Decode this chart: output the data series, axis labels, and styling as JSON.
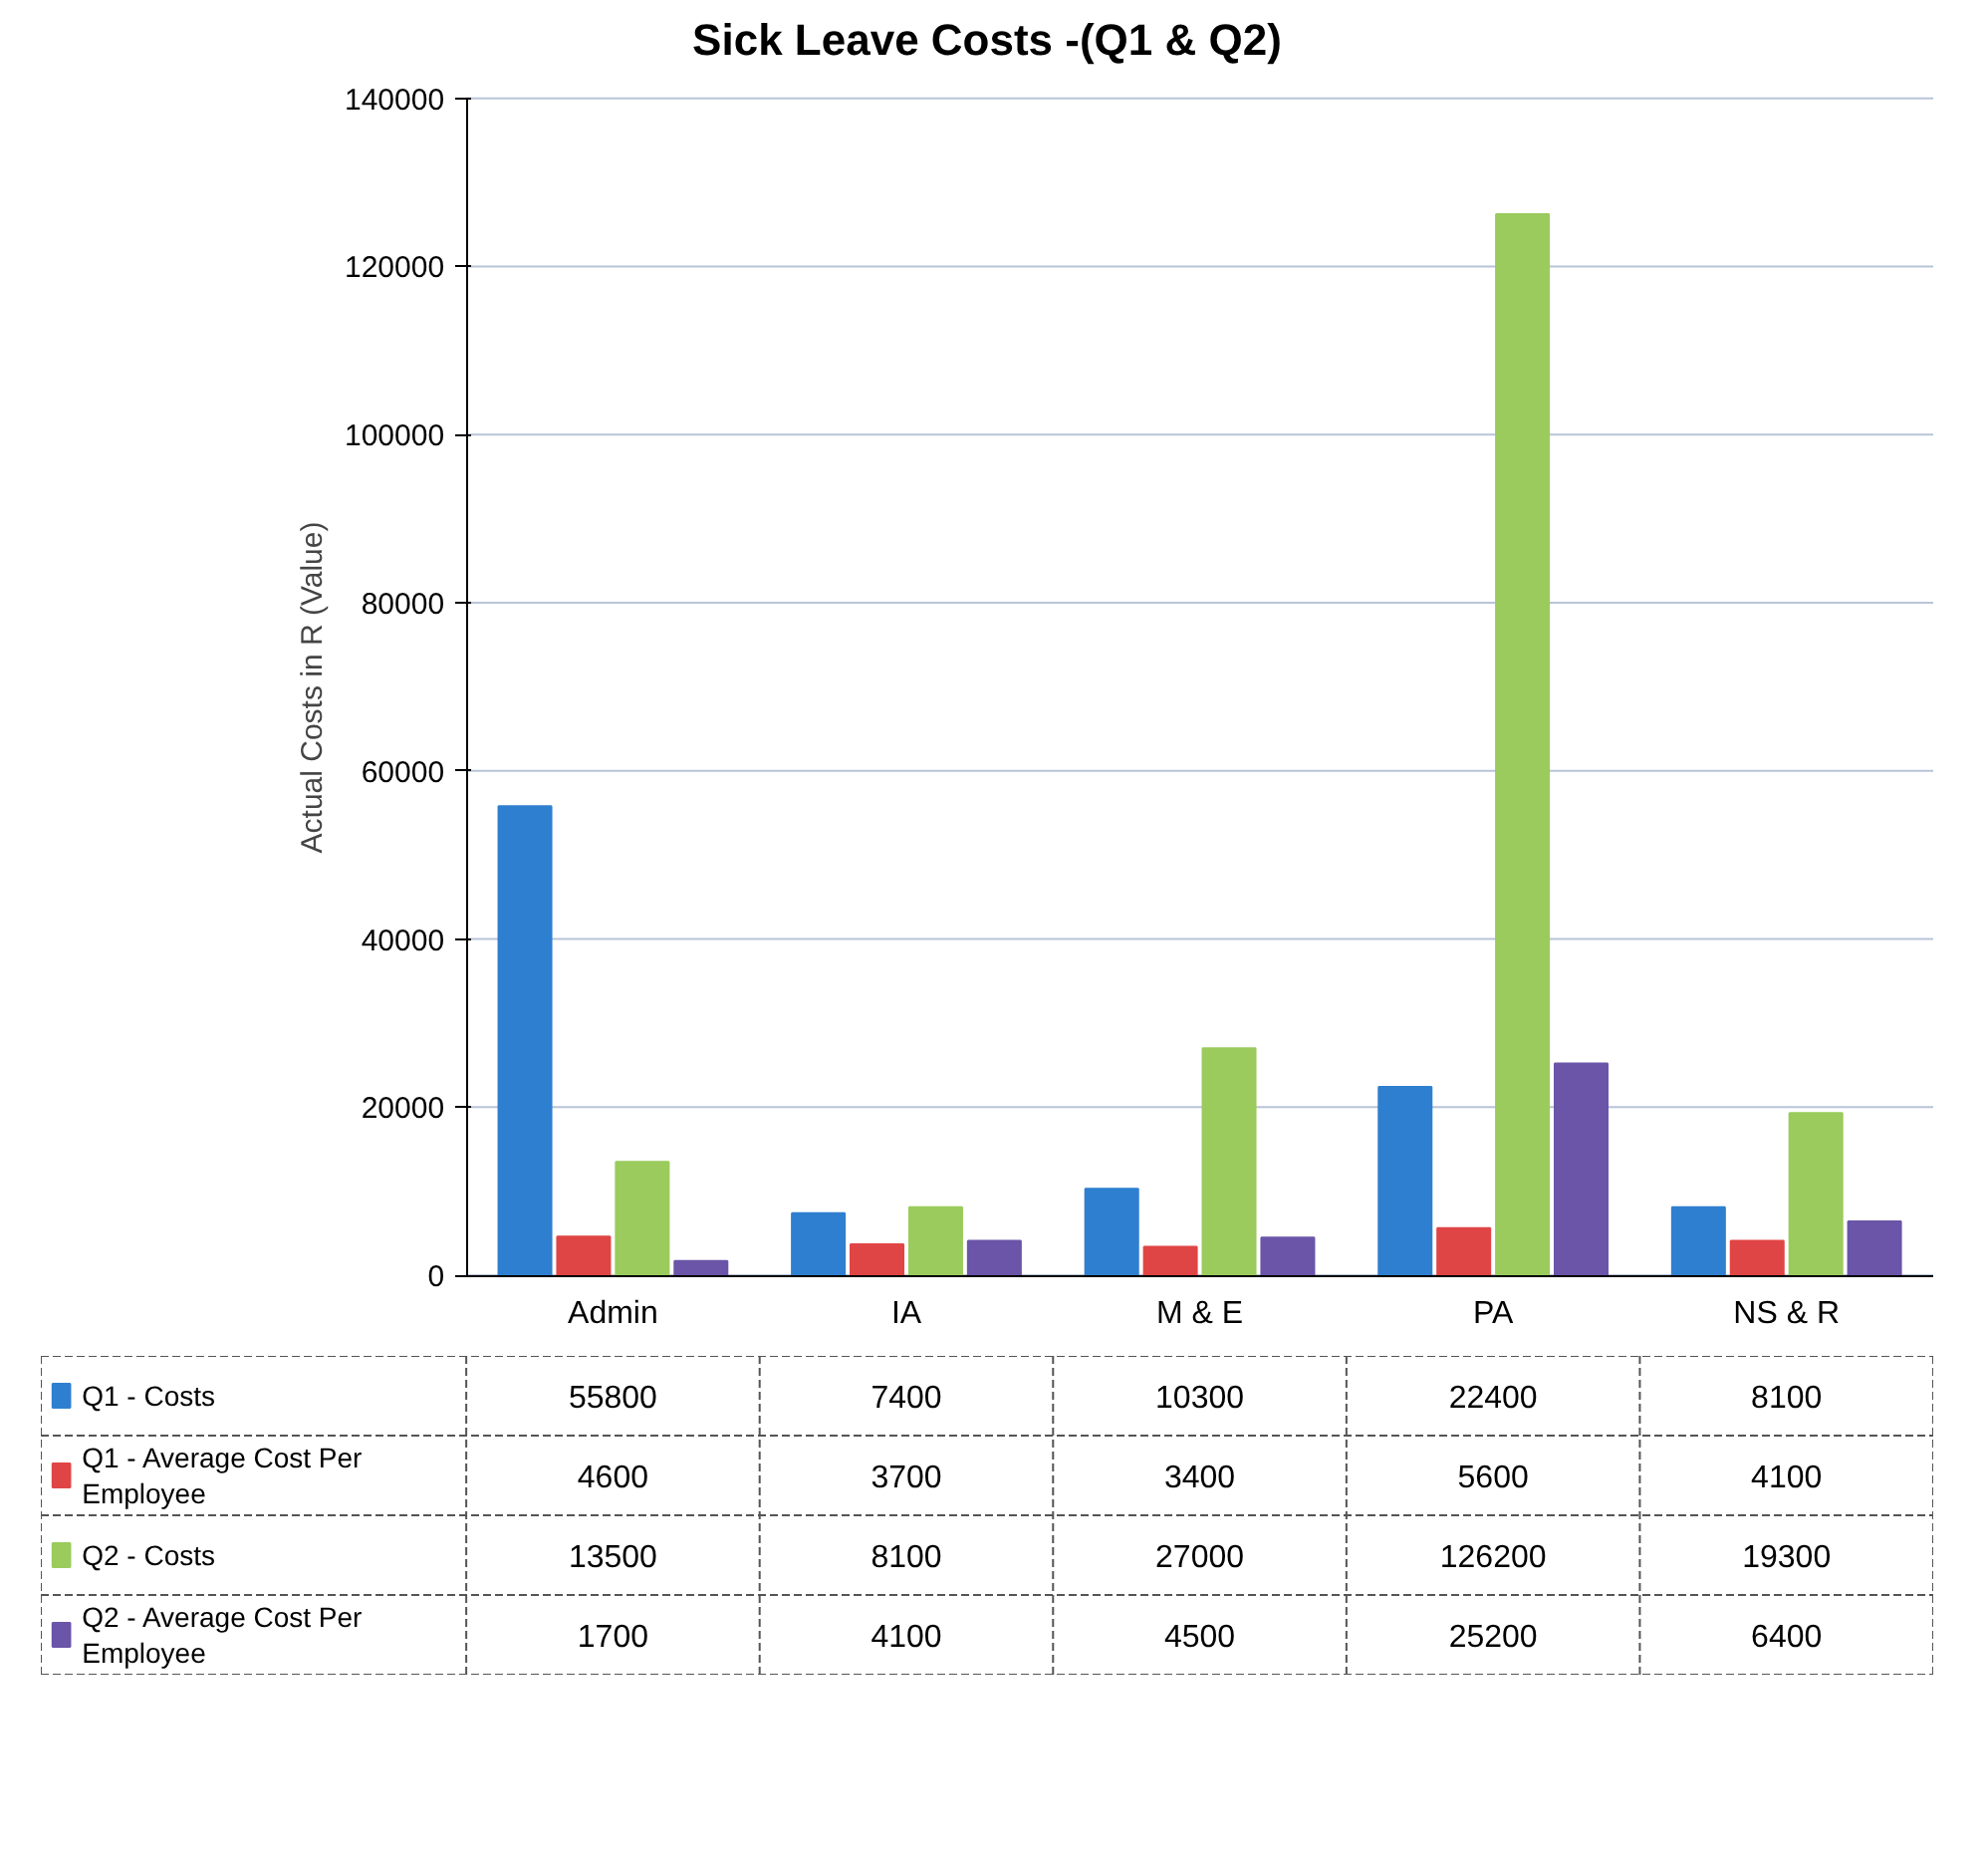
{
  "chart_data": {
    "type": "bar",
    "title": "Sick Leave Costs -(Q1 & Q2)",
    "ylabel": "Actual Costs in R (Value)",
    "categories": [
      "Admin",
      "IA",
      "M & E",
      "PA",
      "NS & R"
    ],
    "series": [
      {
        "name": "Q1 - Costs",
        "color": "#2f7fd0",
        "values": [
          55800,
          7400,
          10300,
          22400,
          8100
        ]
      },
      {
        "name": "Q1 - Average Cost Per Employee",
        "color": "#e04545",
        "values": [
          4600,
          3700,
          3400,
          5600,
          4100
        ]
      },
      {
        "name": "Q2 - Costs",
        "color": "#9acb5c",
        "values": [
          13500,
          8100,
          27000,
          126200,
          19300
        ]
      },
      {
        "name": "Q2 - Average Cost Per Employee",
        "color": "#6a55a8",
        "values": [
          1700,
          4100,
          4500,
          25200,
          6400
        ]
      }
    ],
    "ylim": [
      0,
      140000
    ],
    "yticks": [
      0,
      20000,
      40000,
      60000,
      80000,
      100000,
      120000,
      140000
    ],
    "grid": "y",
    "legend": "bottom",
    "data_labels": true
  }
}
